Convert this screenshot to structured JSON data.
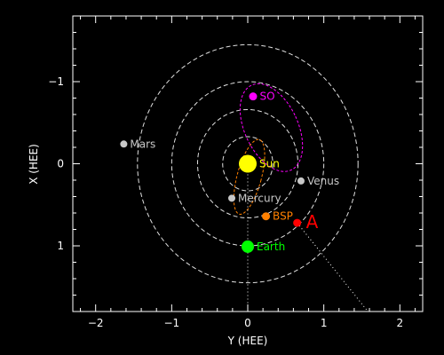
{
  "chart_data": {
    "type": "scatter",
    "xlabel": "Y (HEE)",
    "ylabel": "X (HEE)",
    "xlim": [
      -2.3,
      2.3
    ],
    "ylim": [
      -1.8,
      1.8
    ],
    "y_axis_inverted": true,
    "x_ticks": [
      -2,
      -1,
      0,
      1,
      2
    ],
    "y_ticks": [
      -1,
      0,
      1
    ],
    "x_tick_labels": [
      "−2",
      "−1",
      "0",
      "1",
      "2"
    ],
    "y_tick_labels": [
      "−1",
      "0",
      "1"
    ],
    "grid": false,
    "reference_circles_au": [
      0.33,
      0.66,
      1.0,
      1.45
    ],
    "bodies": [
      {
        "name": "Sun",
        "y": 0.0,
        "x": 0.0,
        "color": "#ffff00",
        "label": "Sun"
      },
      {
        "name": "SO",
        "y": 0.07,
        "x": -0.82,
        "color": "#ff00ff",
        "label": "SO"
      },
      {
        "name": "Mars",
        "y": -1.63,
        "x": -0.24,
        "color": "#c8c8c8",
        "label": "Mars"
      },
      {
        "name": "Venus",
        "y": 0.7,
        "x": 0.21,
        "color": "#c8c8c8",
        "label": "Venus"
      },
      {
        "name": "Mercury",
        "y": -0.21,
        "x": 0.42,
        "color": "#c8c8c8",
        "label": "Mercury"
      },
      {
        "name": "BSP",
        "y": 0.24,
        "x": 0.64,
        "color": "#ff8000",
        "label": "BSP"
      },
      {
        "name": "A",
        "y": 0.65,
        "x": 0.72,
        "color": "#ff0000",
        "label": "A"
      },
      {
        "name": "Earth",
        "y": 0.0,
        "x": 1.01,
        "color": "#00ff00",
        "label": "Earth"
      }
    ],
    "orbits": [
      {
        "name": "SO orbit",
        "color": "#ff00ff",
        "center": [
          0.31,
          -0.44
        ],
        "radii": [
          0.35,
          0.57
        ],
        "angle_deg": -25
      },
      {
        "name": "BSP orbit",
        "color": "#ff8000",
        "center": [
          0.02,
          0.16
        ],
        "radii": [
          0.16,
          0.47
        ],
        "angle_deg": 15
      }
    ],
    "dotted_lines": [
      {
        "name": "earth-line",
        "color": "#ffffff",
        "from": [
          0.0,
          0.0
        ],
        "to": [
          0.0,
          1.8
        ]
      },
      {
        "name": "A-line",
        "color": "#ffffff",
        "from": [
          0.65,
          0.72
        ],
        "to": [
          1.58,
          1.8
        ]
      }
    ]
  }
}
